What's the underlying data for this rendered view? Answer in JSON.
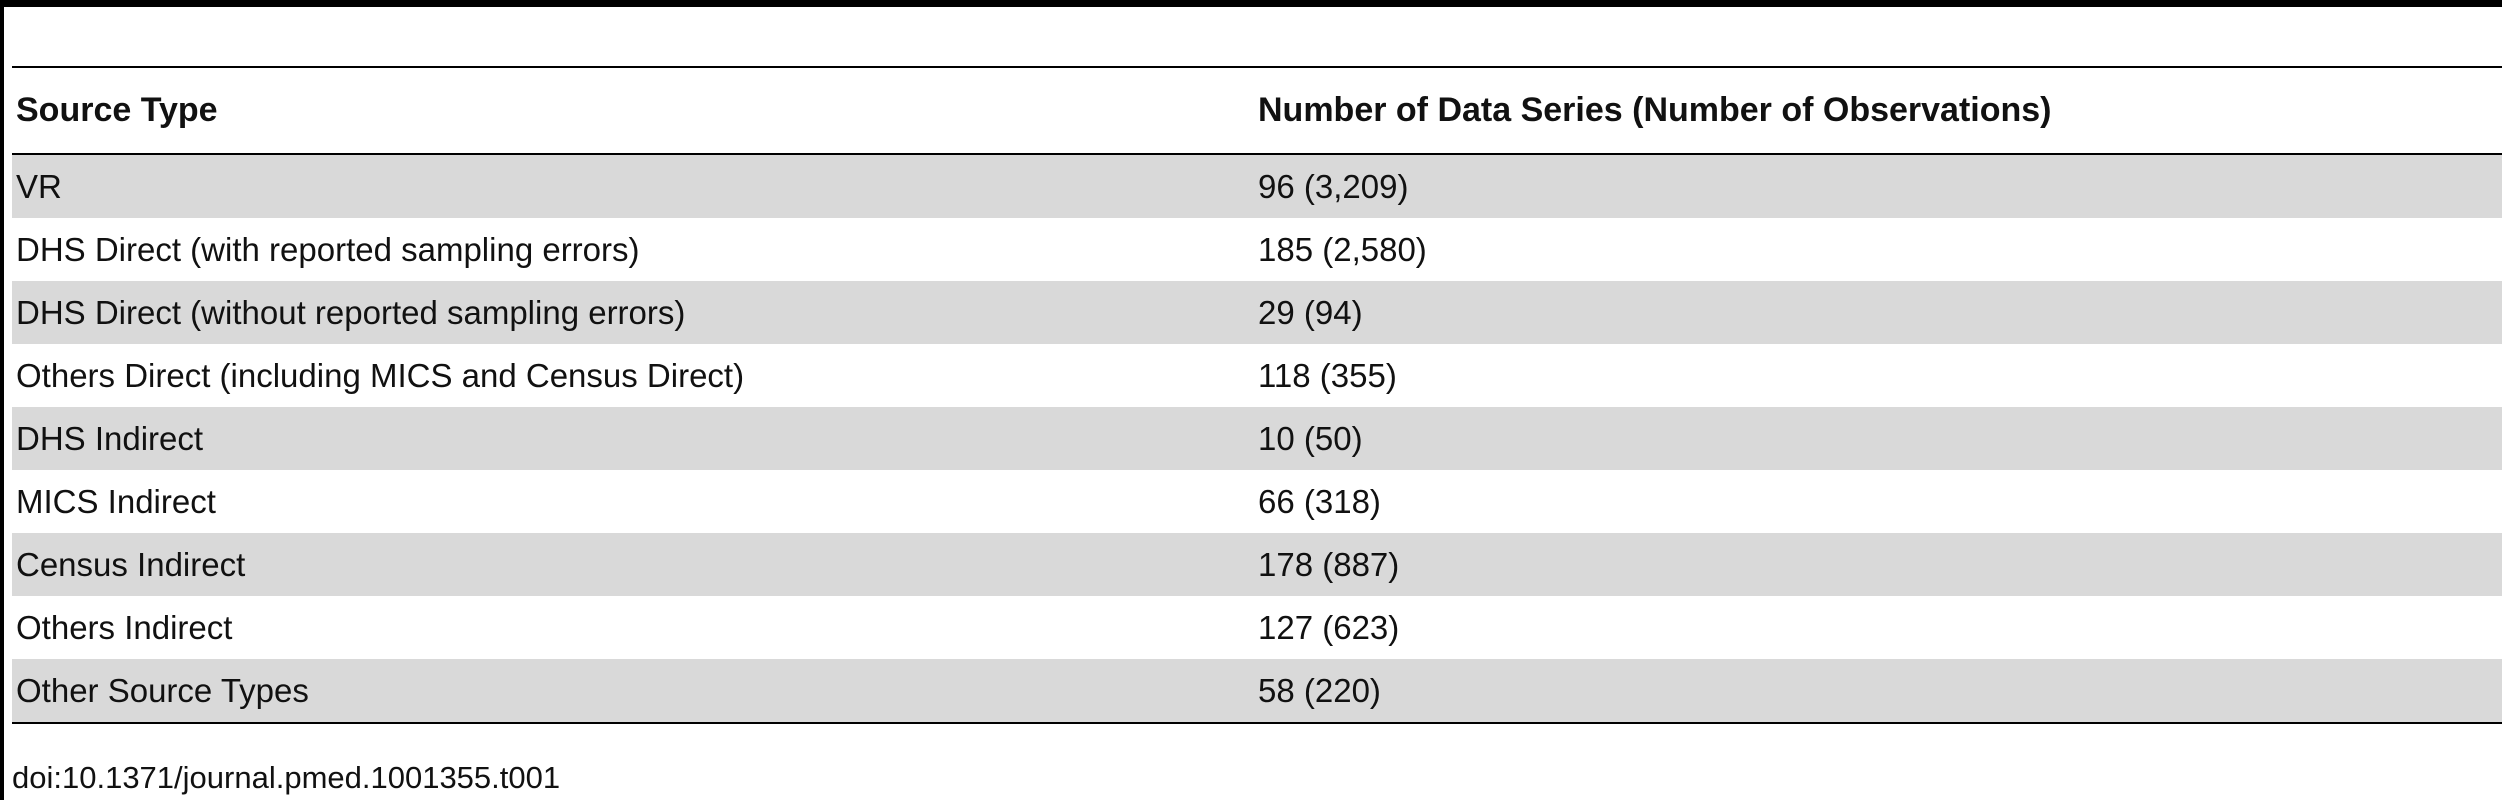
{
  "table": {
    "headers": [
      "Source Type",
      "Number of Data Series (Number of Observations)"
    ],
    "rows": [
      {
        "source": "VR",
        "count": "96 (3,209)"
      },
      {
        "source": "DHS Direct (with reported sampling errors)",
        "count": "185 (2,580)"
      },
      {
        "source": "DHS Direct (without reported sampling errors)",
        "count": "29 (94)"
      },
      {
        "source": "Others Direct (including MICS and Census Direct)",
        "count": "118 (355)"
      },
      {
        "source": "DHS Indirect",
        "count": "10 (50)"
      },
      {
        "source": "MICS Indirect",
        "count": "66 (318)"
      },
      {
        "source": "Census Indirect",
        "count": "178 (887)"
      },
      {
        "source": "Others Indirect",
        "count": "127 (623)"
      },
      {
        "source": "Other Source Types",
        "count": "58 (220)"
      }
    ]
  },
  "footnote": "doi:10.1371/journal.pmed.1001355.t001",
  "colors": {
    "shaded_row": "#d9d9d9",
    "rule": "#000000"
  }
}
